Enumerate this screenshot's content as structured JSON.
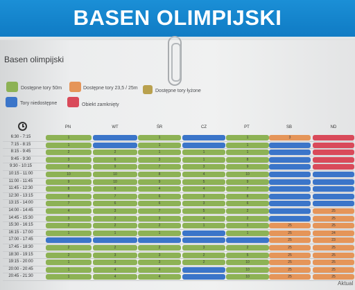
{
  "banner_title": "BASEN OLIMPIJSKI",
  "subtitle": "Basen olimpijski",
  "legend": [
    {
      "label": "Dostępne tory 50m",
      "color": "#8db255"
    },
    {
      "label": "Dostępne tory 23,5 / 25m",
      "color": "#e59559"
    },
    {
      "label": "Dostępne tory łyżone",
      "color": "#b9a14e"
    },
    {
      "label": "Tory niedostępne",
      "color": "#3b75c9"
    },
    {
      "label": "Obiekt zamknięty",
      "color": "#d94a5a"
    }
  ],
  "days": [
    "PN",
    "WT",
    "ŚR",
    "CZ",
    "PT",
    "SB",
    "ND"
  ],
  "times": [
    "6:30 - 7:15",
    "7:15 - 8:15",
    "8:15 - 9:45",
    "9:45 - 9:30",
    "9:30 - 10:15",
    "10:15 - 11:00",
    "11:00 - 11:45",
    "11:45 - 12:30",
    "12:30 - 13:15",
    "13:15 - 14:00",
    "14:00 - 14:45",
    "14:45 - 15:30",
    "15:30 - 16:15",
    "16:15 - 17:00",
    "17:00 - 17:45",
    "17:45 - 18:30",
    "18:30 - 19:15",
    "19:15 - 20:00",
    "20:00 - 20:45",
    "20:45 - 21:30"
  ],
  "colors": {
    "g": "#8db255",
    "o": "#e59559",
    "b": "#3b75c9",
    "r": "#d94a5a",
    "y": "#b9a14e"
  },
  "grid": [
    [
      {
        "c": "g",
        "t": "1"
      },
      {
        "c": "b",
        "t": ""
      },
      {
        "c": "g",
        "t": "1"
      },
      {
        "c": "b",
        "t": ""
      },
      {
        "c": "g",
        "t": "1"
      },
      {
        "c": "o",
        "t": "3"
      },
      {
        "c": "r",
        "t": ""
      }
    ],
    [
      {
        "c": "g",
        "t": "1"
      },
      {
        "c": "b",
        "t": ""
      },
      {
        "c": "g",
        "t": "1"
      },
      {
        "c": "b",
        "t": ""
      },
      {
        "c": "g",
        "t": "1"
      },
      {
        "c": "b",
        "t": ""
      },
      {
        "c": "r",
        "t": ""
      }
    ],
    [
      {
        "c": "g",
        "t": "2"
      },
      {
        "c": "g",
        "t": "2"
      },
      {
        "c": "g",
        "t": "1"
      },
      {
        "c": "g",
        "t": "1"
      },
      {
        "c": "g",
        "t": "1"
      },
      {
        "c": "b",
        "t": ""
      },
      {
        "c": "r",
        "t": ""
      }
    ],
    [
      {
        "c": "g",
        "t": "3"
      },
      {
        "c": "g",
        "t": "6"
      },
      {
        "c": "g",
        "t": "3"
      },
      {
        "c": "g",
        "t": "1"
      },
      {
        "c": "g",
        "t": "8"
      },
      {
        "c": "b",
        "t": ""
      },
      {
        "c": "r",
        "t": ""
      }
    ],
    [
      {
        "c": "g",
        "t": "8"
      },
      {
        "c": "g",
        "t": "9"
      },
      {
        "c": "g",
        "t": "7"
      },
      {
        "c": "g",
        "t": "3"
      },
      {
        "c": "g",
        "t": "9"
      },
      {
        "c": "b",
        "t": ""
      },
      {
        "c": "r",
        "t": ""
      }
    ],
    [
      {
        "c": "g",
        "t": "10"
      },
      {
        "c": "g",
        "t": "10"
      },
      {
        "c": "g",
        "t": "8"
      },
      {
        "c": "g",
        "t": "4"
      },
      {
        "c": "g",
        "t": "10"
      },
      {
        "c": "b",
        "t": ""
      },
      {
        "c": "b",
        "t": ""
      }
    ],
    [
      {
        "c": "g",
        "t": "9"
      },
      {
        "c": "g",
        "t": "10"
      },
      {
        "c": "g",
        "t": "9"
      },
      {
        "c": "g",
        "t": "5"
      },
      {
        "c": "g",
        "t": "9"
      },
      {
        "c": "b",
        "t": ""
      },
      {
        "c": "b",
        "t": ""
      }
    ],
    [
      {
        "c": "g",
        "t": "8"
      },
      {
        "c": "g",
        "t": "8"
      },
      {
        "c": "g",
        "t": "4"
      },
      {
        "c": "g",
        "t": "4"
      },
      {
        "c": "g",
        "t": "7"
      },
      {
        "c": "b",
        "t": ""
      },
      {
        "c": "b",
        "t": ""
      }
    ],
    [
      {
        "c": "g",
        "t": "8"
      },
      {
        "c": "g",
        "t": "7"
      },
      {
        "c": "g",
        "t": "6"
      },
      {
        "c": "g",
        "t": "3"
      },
      {
        "c": "g",
        "t": "8"
      },
      {
        "c": "b",
        "t": ""
      },
      {
        "c": "b",
        "t": ""
      }
    ],
    [
      {
        "c": "g",
        "t": "7"
      },
      {
        "c": "g",
        "t": "6"
      },
      {
        "c": "g",
        "t": "6"
      },
      {
        "c": "g",
        "t": "3"
      },
      {
        "c": "g",
        "t": "6"
      },
      {
        "c": "b",
        "t": ""
      },
      {
        "c": "b",
        "t": ""
      }
    ],
    [
      {
        "c": "g",
        "t": "4"
      },
      {
        "c": "g",
        "t": "3"
      },
      {
        "c": "g",
        "t": "7"
      },
      {
        "c": "g",
        "t": "5"
      },
      {
        "c": "g",
        "t": "2"
      },
      {
        "c": "b",
        "t": ""
      },
      {
        "c": "o",
        "t": "25"
      }
    ],
    [
      {
        "c": "g",
        "t": "3"
      },
      {
        "c": "g",
        "t": "2"
      },
      {
        "c": "g",
        "t": "3"
      },
      {
        "c": "g",
        "t": "4"
      },
      {
        "c": "g",
        "t": "2"
      },
      {
        "c": "b",
        "t": ""
      },
      {
        "c": "o",
        "t": "25"
      }
    ],
    [
      {
        "c": "g",
        "t": "2"
      },
      {
        "c": "g",
        "t": "2"
      },
      {
        "c": "g",
        "t": "2"
      },
      {
        "c": "g",
        "t": "1"
      },
      {
        "c": "g",
        "t": "1"
      },
      {
        "c": "o",
        "t": "25"
      },
      {
        "c": "o",
        "t": "25"
      }
    ],
    [
      {
        "c": "g",
        "t": "1"
      },
      {
        "c": "g",
        "t": "1"
      },
      {
        "c": "g",
        "t": "1"
      },
      {
        "c": "b",
        "t": ""
      },
      {
        "c": "g",
        "t": "1"
      },
      {
        "c": "o",
        "t": "25"
      },
      {
        "c": "o",
        "t": "24"
      }
    ],
    [
      {
        "c": "b",
        "t": ""
      },
      {
        "c": "b",
        "t": ""
      },
      {
        "c": "b",
        "t": ""
      },
      {
        "c": "b",
        "t": ""
      },
      {
        "c": "b",
        "t": ""
      },
      {
        "c": "o",
        "t": "25"
      },
      {
        "c": "o",
        "t": "23"
      }
    ],
    [
      {
        "c": "g",
        "t": "2"
      },
      {
        "c": "g",
        "t": "2"
      },
      {
        "c": "g",
        "t": "2"
      },
      {
        "c": "g",
        "t": "3"
      },
      {
        "c": "g",
        "t": "2"
      },
      {
        "c": "o",
        "t": "25"
      },
      {
        "c": "o",
        "t": "25"
      }
    ],
    [
      {
        "c": "g",
        "t": "2"
      },
      {
        "c": "g",
        "t": "3"
      },
      {
        "c": "g",
        "t": "3"
      },
      {
        "c": "g",
        "t": "2"
      },
      {
        "c": "g",
        "t": "5"
      },
      {
        "c": "o",
        "t": "25"
      },
      {
        "c": "o",
        "t": "25"
      }
    ],
    [
      {
        "c": "g",
        "t": "1"
      },
      {
        "c": "g",
        "t": "3"
      },
      {
        "c": "g",
        "t": "3"
      },
      {
        "c": "g",
        "t": "2"
      },
      {
        "c": "g",
        "t": "10"
      },
      {
        "c": "o",
        "t": "25"
      },
      {
        "c": "o",
        "t": "25"
      }
    ],
    [
      {
        "c": "g",
        "t": "1"
      },
      {
        "c": "g",
        "t": "4"
      },
      {
        "c": "g",
        "t": "4"
      },
      {
        "c": "b",
        "t": ""
      },
      {
        "c": "g",
        "t": "10"
      },
      {
        "c": "o",
        "t": "25"
      },
      {
        "c": "o",
        "t": "25"
      }
    ],
    [
      {
        "c": "g",
        "t": "1"
      },
      {
        "c": "g",
        "t": "4"
      },
      {
        "c": "g",
        "t": "4"
      },
      {
        "c": "b",
        "t": ""
      },
      {
        "c": "g",
        "t": "10"
      },
      {
        "c": "o",
        "t": "25"
      },
      {
        "c": "o",
        "t": "25"
      }
    ]
  ],
  "footer_text": "Aktual"
}
